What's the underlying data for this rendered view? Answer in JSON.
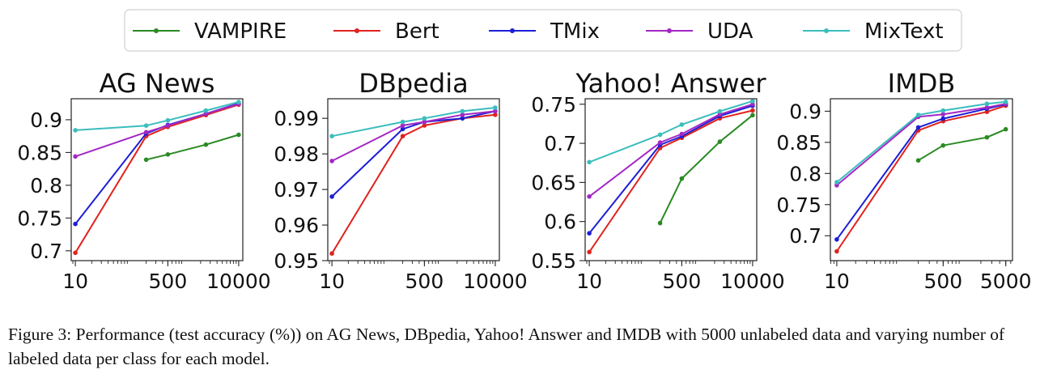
{
  "legend": {
    "entries": [
      {
        "name": "VAMPIRE",
        "color": "#2a8a22"
      },
      {
        "name": "Bert",
        "color": "#e0231e"
      },
      {
        "name": "TMix",
        "color": "#1d1fd6"
      },
      {
        "name": "UDA",
        "color": "#a328c4"
      },
      {
        "name": "MixText",
        "color": "#3bbdbd"
      }
    ]
  },
  "caption": "Figure 3: Performance (test accuracy (%)) on AG News, DBpedia, Yahoo! Answer and IMDB with 5000 unlabeled data and varying number of labeled data per class for each model.",
  "chart_data": [
    {
      "type": "line",
      "title": "AG News",
      "xscale": "log",
      "xticks": [
        10,
        500,
        10000
      ],
      "xtick_labels": [
        "10",
        "500",
        "10000"
      ],
      "xlim": [
        8.4,
        11900
      ],
      "ylim": [
        0.685,
        0.932
      ],
      "yticks": [
        0.7,
        0.75,
        0.8,
        0.85,
        0.9
      ],
      "ytick_labels": [
        "0.7",
        "0.75",
        "0.8",
        "0.85",
        "0.9"
      ],
      "x": [
        10,
        200,
        500,
        2500,
        10000
      ],
      "series": [
        {
          "name": "VAMPIRE",
          "color": "#2a8a22",
          "values": [
            null,
            0.839,
            0.847,
            0.862,
            0.877
          ]
        },
        {
          "name": "Bert",
          "color": "#e0231e",
          "values": [
            0.697,
            0.875,
            0.889,
            0.907,
            0.923
          ]
        },
        {
          "name": "TMix",
          "color": "#1d1fd6",
          "values": [
            0.741,
            0.879,
            0.892,
            0.909,
            0.925
          ]
        },
        {
          "name": "UDA",
          "color": "#a328c4",
          "values": [
            0.844,
            0.881,
            0.891,
            0.909,
            0.924
          ]
        },
        {
          "name": "MixText",
          "color": "#3bbdbd",
          "values": [
            0.884,
            0.891,
            0.899,
            0.914,
            0.927
          ]
        }
      ]
    },
    {
      "type": "line",
      "title": "DBpedia",
      "xscale": "log",
      "xticks": [
        10,
        500,
        10000
      ],
      "xtick_labels": [
        "10",
        "500",
        "10000"
      ],
      "xlim": [
        8.4,
        11900
      ],
      "ylim": [
        0.95,
        0.9955
      ],
      "yticks": [
        0.95,
        0.96,
        0.97,
        0.98,
        0.99
      ],
      "ytick_labels": [
        "0.95",
        "0.96",
        "0.97",
        "0.98",
        "0.99"
      ],
      "x": [
        10,
        200,
        500,
        2500,
        10000
      ],
      "series": [
        {
          "name": "VAMPIRE",
          "color": "#2a8a22",
          "values": [
            null,
            null,
            null,
            null,
            null
          ]
        },
        {
          "name": "Bert",
          "color": "#e0231e",
          "values": [
            0.952,
            0.985,
            0.988,
            0.99,
            0.991
          ]
        },
        {
          "name": "TMix",
          "color": "#1d1fd6",
          "values": [
            0.968,
            0.987,
            0.989,
            0.99,
            0.992
          ]
        },
        {
          "name": "UDA",
          "color": "#a328c4",
          "values": [
            0.978,
            0.988,
            0.989,
            0.991,
            0.992
          ]
        },
        {
          "name": "MixText",
          "color": "#3bbdbd",
          "values": [
            0.985,
            0.989,
            0.99,
            0.992,
            0.993
          ]
        }
      ]
    },
    {
      "type": "line",
      "title": "Yahoo! Answer",
      "xscale": "log",
      "xticks": [
        10,
        500,
        10000
      ],
      "xtick_labels": [
        "10",
        "500",
        "10000"
      ],
      "xlim": [
        8.4,
        11900
      ],
      "ylim": [
        0.55,
        0.757
      ],
      "yticks": [
        0.55,
        0.6,
        0.65,
        0.7,
        0.75
      ],
      "ytick_labels": [
        "0.55",
        "0.6",
        "0.65",
        "0.7",
        "0.75"
      ],
      "x": [
        10,
        200,
        500,
        2500,
        10000
      ],
      "series": [
        {
          "name": "VAMPIRE",
          "color": "#2a8a22",
          "values": [
            null,
            0.598,
            0.655,
            0.702,
            0.736
          ]
        },
        {
          "name": "Bert",
          "color": "#e0231e",
          "values": [
            0.561,
            0.694,
            0.707,
            0.732,
            0.742
          ]
        },
        {
          "name": "TMix",
          "color": "#1d1fd6",
          "values": [
            0.585,
            0.698,
            0.709,
            0.735,
            0.748
          ]
        },
        {
          "name": "UDA",
          "color": "#a328c4",
          "values": [
            0.632,
            0.701,
            0.712,
            0.737,
            0.75
          ]
        },
        {
          "name": "MixText",
          "color": "#3bbdbd",
          "values": [
            0.676,
            0.711,
            0.724,
            0.741,
            0.754
          ]
        }
      ]
    },
    {
      "type": "line",
      "title": "IMDB",
      "xscale": "log",
      "xticks": [
        10,
        500,
        5000
      ],
      "xtick_labels": [
        "10",
        "500",
        "5000"
      ],
      "xlim": [
        7.9,
        6400
      ],
      "ylim": [
        0.66,
        0.92
      ],
      "yticks": [
        0.7,
        0.75,
        0.8,
        0.85,
        0.9
      ],
      "ytick_labels": [
        "0.7",
        "0.75",
        "0.8",
        "0.85",
        "0.9"
      ],
      "x": [
        10,
        200,
        500,
        2500,
        5000
      ],
      "series": [
        {
          "name": "VAMPIRE",
          "color": "#2a8a22",
          "values": [
            null,
            0.821,
            0.845,
            0.858,
            0.871
          ]
        },
        {
          "name": "Bert",
          "color": "#e0231e",
          "values": [
            0.675,
            0.869,
            0.884,
            0.899,
            0.909
          ]
        },
        {
          "name": "TMix",
          "color": "#1d1fd6",
          "values": [
            0.694,
            0.874,
            0.888,
            0.904,
            0.911
          ]
        },
        {
          "name": "UDA",
          "color": "#a328c4",
          "values": [
            0.781,
            0.891,
            0.895,
            0.906,
            0.912
          ]
        },
        {
          "name": "MixText",
          "color": "#3bbdbd",
          "values": [
            0.786,
            0.894,
            0.901,
            0.912,
            0.915
          ]
        }
      ]
    }
  ]
}
